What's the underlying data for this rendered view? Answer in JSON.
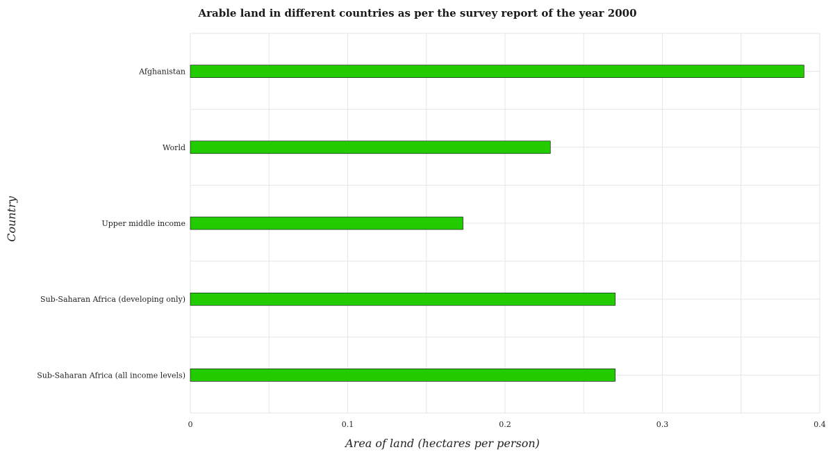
{
  "chart_data": {
    "type": "bar",
    "orientation": "horizontal",
    "title": "Arable land in different countries as per the survey report of the year 2000",
    "xlabel": "Area of land (hectares per person)",
    "ylabel": "Country",
    "categories": [
      "Sub-Saharan Africa (all income levels)",
      "Sub-Saharan Africa (developing only)",
      "Upper middle income",
      "World",
      "Afghanistan"
    ],
    "values": [
      0.27,
      0.27,
      0.1733,
      0.2288,
      0.39
    ],
    "xlim": [
      0,
      0.4
    ],
    "xticks": [
      "0",
      "0.1",
      "0.2",
      "0.3",
      "0.4"
    ],
    "xtick_values": [
      0,
      0.1,
      0.2,
      0.3,
      0.4
    ],
    "grid": true,
    "bar_color": "#22cc00"
  }
}
